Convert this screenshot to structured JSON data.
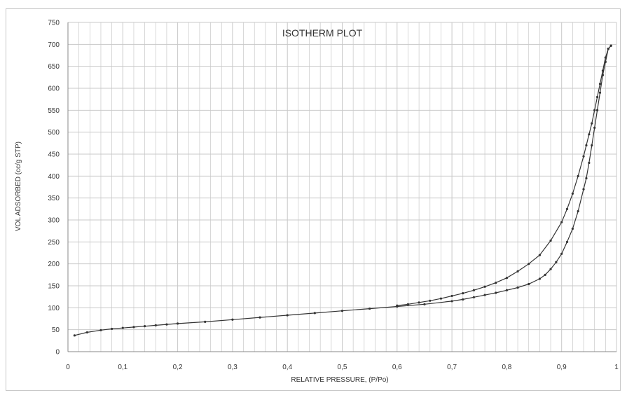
{
  "chart_data": {
    "type": "line",
    "title": "ISOTHERM PLOT",
    "xlabel": "RELATIVE PRESSURE, (P/Po)",
    "ylabel": "VOL ADSORBED (cc/g STP)",
    "xlim": [
      0,
      1
    ],
    "ylim": [
      0,
      750
    ],
    "x_ticks": [
      0,
      0.1,
      0.2,
      0.3,
      0.4,
      0.5,
      0.6,
      0.7,
      0.8,
      0.9,
      1
    ],
    "x_tick_labels": [
      "0",
      "0,1",
      "0,2",
      "0,3",
      "0,4",
      "0,5",
      "0,6",
      "0,7",
      "0,8",
      "0,9",
      "1"
    ],
    "y_ticks": [
      0,
      50,
      100,
      150,
      200,
      250,
      300,
      350,
      400,
      450,
      500,
      550,
      600,
      650,
      700,
      750
    ],
    "y_tick_labels": [
      "0",
      "50",
      "100",
      "150",
      "200",
      "250",
      "300",
      "350",
      "400",
      "450",
      "500",
      "550",
      "600",
      "650",
      "700",
      "750"
    ],
    "grid": true,
    "legend": "none",
    "series": [
      {
        "x": [
          0.012,
          0.035,
          0.06,
          0.08,
          0.1,
          0.12,
          0.14,
          0.16,
          0.18,
          0.2,
          0.25,
          0.3,
          0.35,
          0.4,
          0.45,
          0.5,
          0.55,
          0.6,
          0.65,
          0.7,
          0.72,
          0.74,
          0.76,
          0.78,
          0.8,
          0.82,
          0.84,
          0.86,
          0.87,
          0.88,
          0.89,
          0.9,
          0.91,
          0.92,
          0.93,
          0.94,
          0.945,
          0.95,
          0.955,
          0.96,
          0.965,
          0.97,
          0.975,
          0.98,
          0.985,
          0.99
        ],
        "values": [
          37,
          44,
          49,
          52,
          54,
          56,
          58,
          60,
          62,
          64,
          68,
          73,
          78,
          83,
          88,
          93,
          98,
          103,
          108,
          115,
          119,
          124,
          129,
          134,
          140,
          146,
          154,
          166,
          175,
          188,
          204,
          223,
          250,
          280,
          320,
          370,
          395,
          430,
          470,
          510,
          550,
          590,
          630,
          660,
          690,
          697
        ]
      },
      {
        "x": [
          0.99,
          0.985,
          0.98,
          0.975,
          0.97,
          0.965,
          0.96,
          0.955,
          0.95,
          0.945,
          0.94,
          0.93,
          0.92,
          0.91,
          0.9,
          0.88,
          0.86,
          0.84,
          0.82,
          0.8,
          0.78,
          0.76,
          0.74,
          0.72,
          0.7,
          0.68,
          0.66,
          0.64,
          0.62,
          0.6
        ],
        "values": [
          697,
          690,
          670,
          640,
          610,
          580,
          550,
          520,
          495,
          470,
          445,
          400,
          360,
          325,
          295,
          253,
          220,
          200,
          183,
          168,
          157,
          148,
          140,
          133,
          127,
          121,
          116,
          112,
          108,
          105
        ]
      }
    ],
    "colors": {
      "line": "#333333",
      "grid": "#c8c8c8",
      "frame": "#c8c8c8"
    }
  }
}
